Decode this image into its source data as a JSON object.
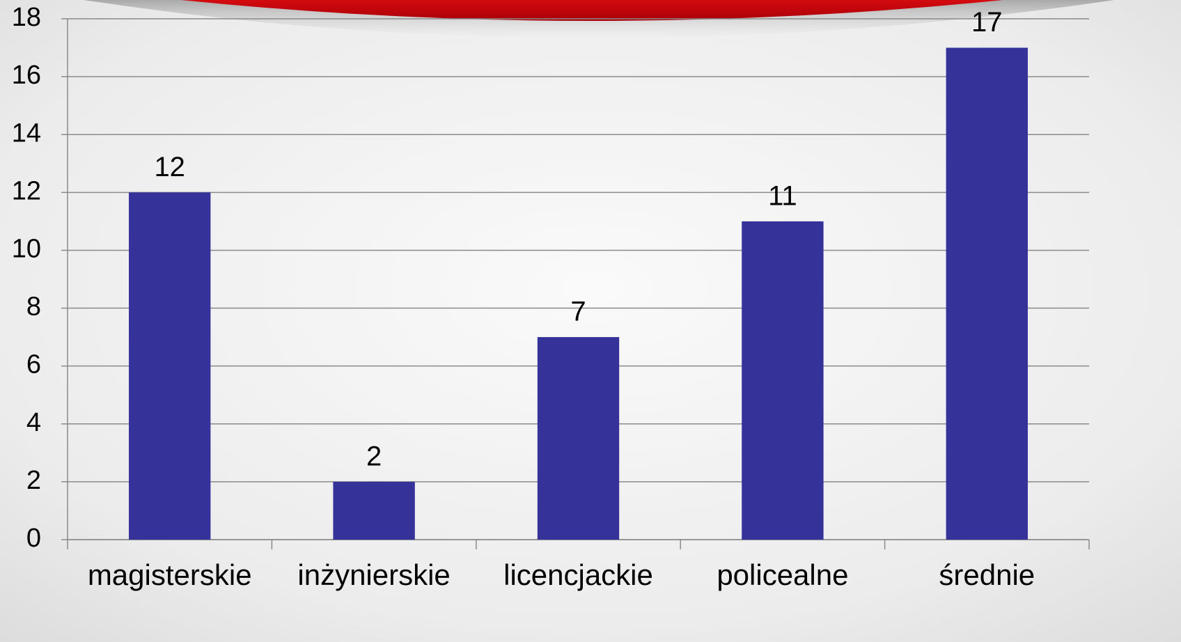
{
  "chart_data": {
    "type": "bar",
    "categories": [
      "magisterskie",
      "inżynierskie",
      "licencjackie",
      "policealne",
      "średnie"
    ],
    "values": [
      12,
      2,
      7,
      11,
      17
    ],
    "color": "#35339a",
    "ylim": [
      0,
      18
    ],
    "yticks": [
      0,
      2,
      4,
      6,
      8,
      10,
      12,
      14,
      16,
      18
    ],
    "grid": true
  }
}
